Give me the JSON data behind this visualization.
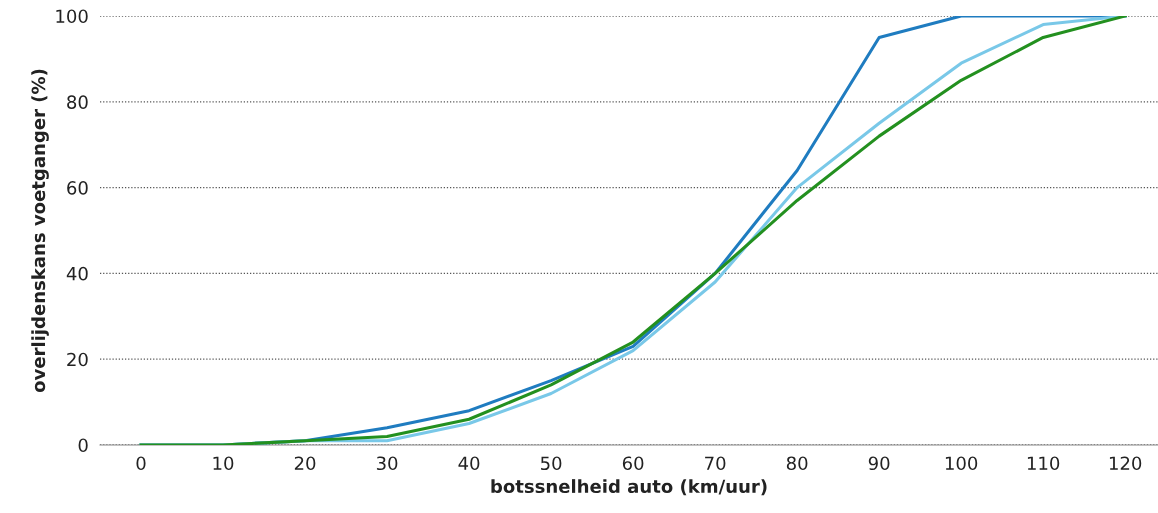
{
  "chart_data": {
    "type": "line",
    "xlabel": "botssnelheid auto (km/uur)",
    "ylabel": "overlijdenskans voetganger (%)",
    "x": [
      0,
      10,
      20,
      30,
      40,
      50,
      60,
      70,
      80,
      90,
      100,
      110,
      120
    ],
    "series": [
      {
        "color": "#1f7cc0",
        "values": [
          0,
          0,
          1,
          4,
          8,
          15,
          23,
          40,
          64,
          95,
          100,
          100,
          100
        ]
      },
      {
        "color": "#79c8e8",
        "values": [
          0,
          0,
          1,
          1,
          5,
          12,
          22,
          38,
          60,
          75,
          89,
          98,
          100
        ]
      },
      {
        "color": "#23901f",
        "values": [
          0,
          0,
          1,
          2,
          6,
          14,
          24,
          40,
          57,
          72,
          85,
          95,
          100
        ]
      }
    ],
    "xlim": [
      -5,
      124
    ],
    "xticks": [
      0,
      10,
      20,
      30,
      40,
      50,
      60,
      70,
      80,
      90,
      100,
      110,
      120
    ],
    "ylim": [
      0,
      100
    ],
    "yticks": [
      0,
      20,
      40,
      60,
      80,
      100
    ],
    "grid": "y",
    "legend": false,
    "marker": "none",
    "line_style": "solid"
  }
}
